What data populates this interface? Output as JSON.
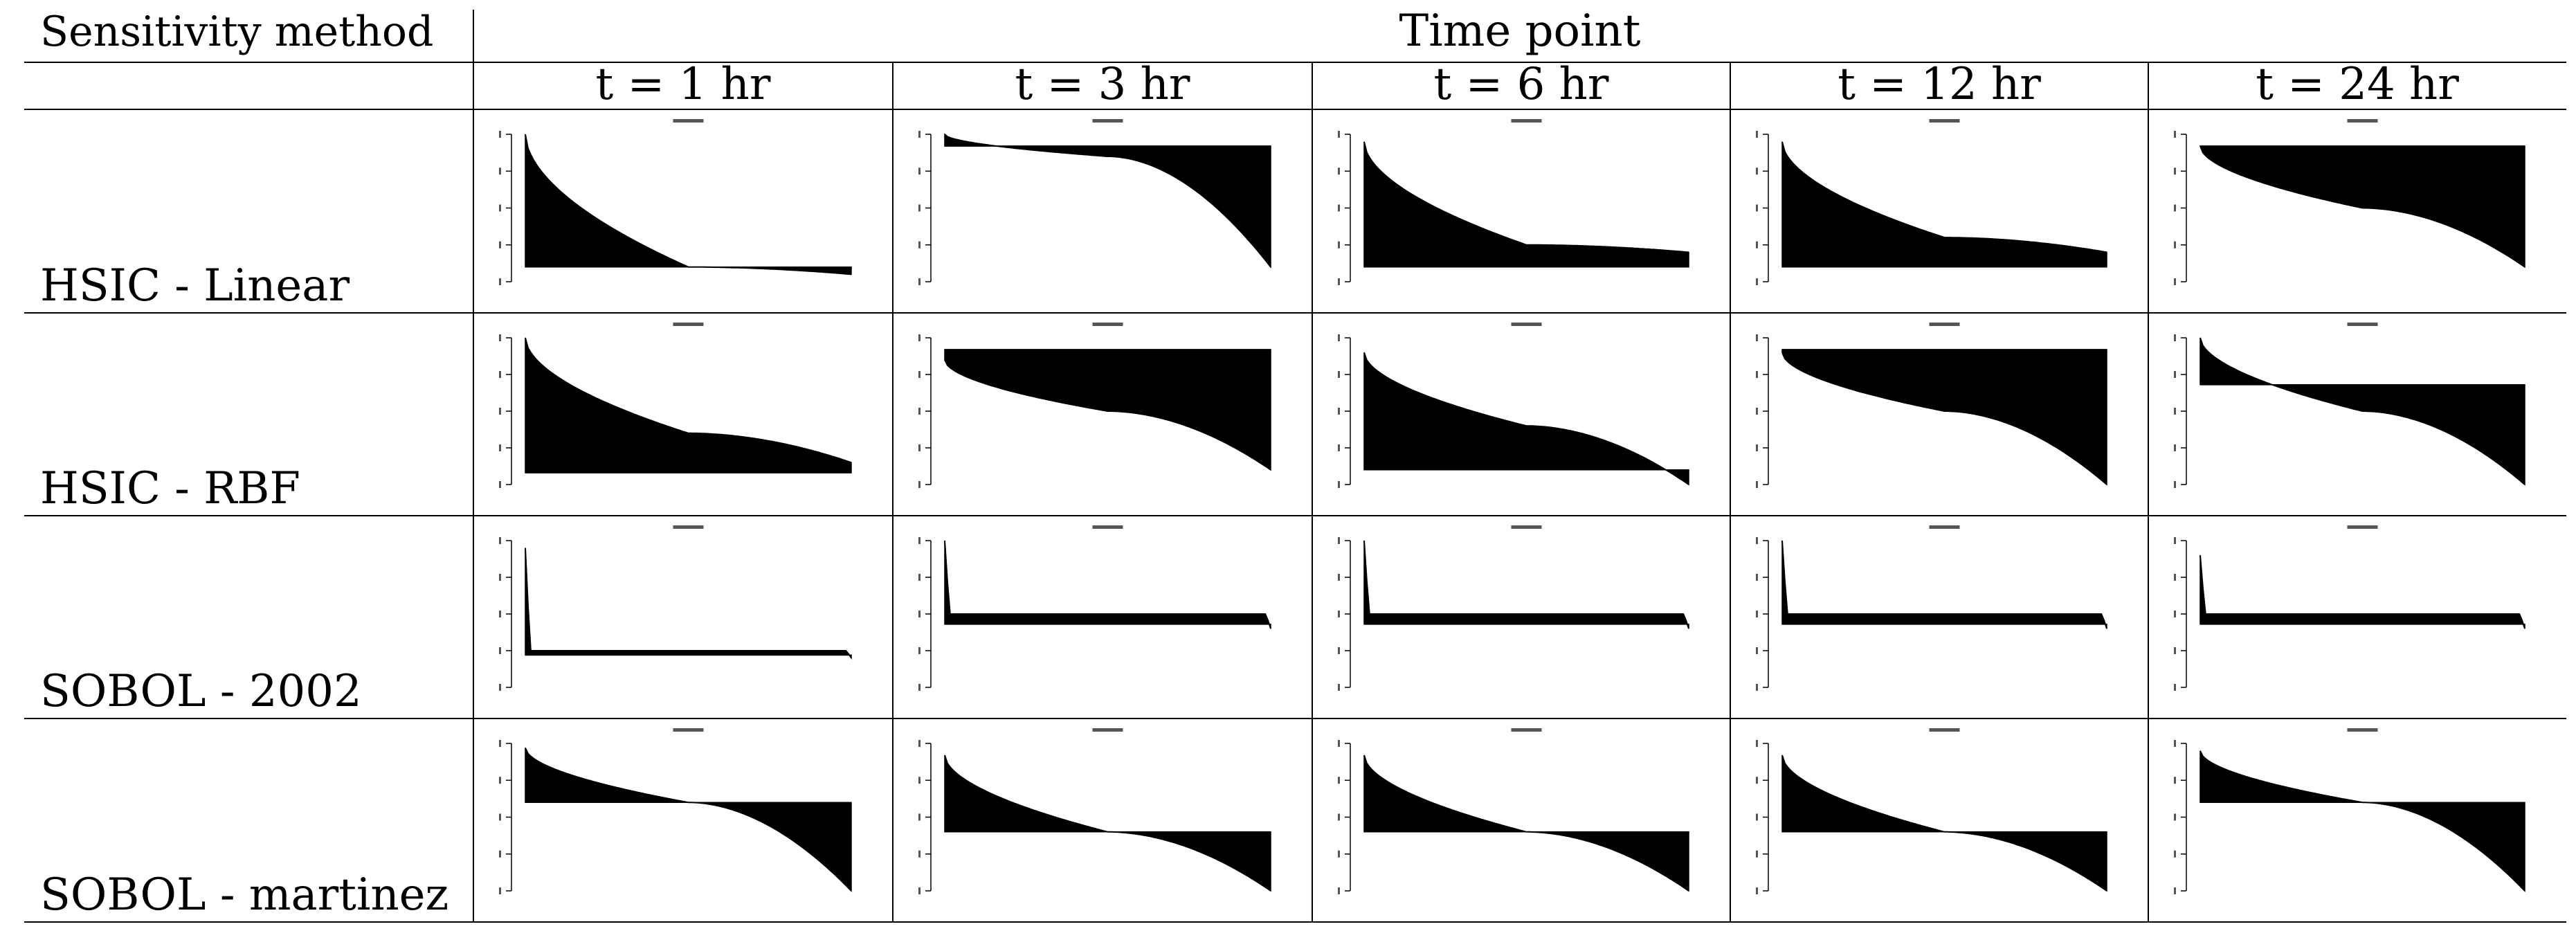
{
  "header": {
    "method_label": "Sensitivity method",
    "group_label": "Time point",
    "time_points": [
      "t = 1 hr",
      "t = 3 hr",
      "t = 6 hr",
      "t = 12 hr",
      "t = 24 hr"
    ]
  },
  "methods": [
    "HSIC - Linear",
    "HSIC - RBF",
    "SOBOL - 2002",
    "SOBOL - martinez"
  ],
  "chart_data": [
    {
      "type": "area",
      "method": "HSIC - Linear",
      "time": "t = 1 hr",
      "shape": "decline",
      "v": [
        1.0,
        0.1,
        0.05
      ],
      "baseline": 0.1
    },
    {
      "type": "area",
      "method": "HSIC - Linear",
      "time": "t = 3 hr",
      "shape": "decline",
      "v": [
        1.0,
        0.85,
        0.1
      ],
      "baseline": 0.92
    },
    {
      "type": "area",
      "method": "HSIC - Linear",
      "time": "t = 6 hr",
      "shape": "decline",
      "v": [
        0.95,
        0.25,
        0.2
      ],
      "baseline": 0.1
    },
    {
      "type": "area",
      "method": "HSIC - Linear",
      "time": "t = 12 hr",
      "shape": "decline",
      "v": [
        0.95,
        0.3,
        0.2
      ],
      "baseline": 0.1
    },
    {
      "type": "area",
      "method": "HSIC - Linear",
      "time": "t = 24 hr",
      "shape": "decline",
      "v": [
        0.92,
        0.5,
        0.1
      ],
      "baseline": 0.92
    },
    {
      "type": "area",
      "method": "HSIC - RBF",
      "time": "t = 1 hr",
      "shape": "decline",
      "v": [
        1.0,
        0.35,
        0.15
      ],
      "baseline": 0.08
    },
    {
      "type": "area",
      "method": "HSIC - RBF",
      "time": "t = 3 hr",
      "shape": "decline",
      "v": [
        0.85,
        0.5,
        0.1
      ],
      "baseline": 0.92
    },
    {
      "type": "area",
      "method": "HSIC - RBF",
      "time": "t = 6 hr",
      "shape": "decline",
      "v": [
        0.9,
        0.4,
        0.0
      ],
      "baseline": 0.1
    },
    {
      "type": "area",
      "method": "HSIC - RBF",
      "time": "t = 12 hr",
      "shape": "decline",
      "v": [
        0.9,
        0.5,
        0.0
      ],
      "baseline": 0.92
    },
    {
      "type": "area",
      "method": "HSIC - RBF",
      "time": "t = 24 hr",
      "shape": "decline",
      "v": [
        1.0,
        0.5,
        0.0
      ],
      "baseline": 0.68
    },
    {
      "type": "area",
      "method": "SOBOL - 2002",
      "time": "t = 1 hr",
      "shape": "spike",
      "v": [
        0.95,
        0.25,
        0.2
      ],
      "baseline": 0.22
    },
    {
      "type": "area",
      "method": "SOBOL - 2002",
      "time": "t = 3 hr",
      "shape": "spike",
      "v": [
        1.0,
        0.5,
        0.4
      ],
      "baseline": 0.43
    },
    {
      "type": "area",
      "method": "SOBOL - 2002",
      "time": "t = 6 hr",
      "shape": "spike",
      "v": [
        1.0,
        0.5,
        0.4
      ],
      "baseline": 0.43
    },
    {
      "type": "area",
      "method": "SOBOL - 2002",
      "time": "t = 12 hr",
      "shape": "spike",
      "v": [
        1.0,
        0.5,
        0.4
      ],
      "baseline": 0.43
    },
    {
      "type": "area",
      "method": "SOBOL - 2002",
      "time": "t = 24 hr",
      "shape": "spike",
      "v": [
        0.9,
        0.5,
        0.4
      ],
      "baseline": 0.43
    },
    {
      "type": "area",
      "method": "SOBOL - martinez",
      "time": "t = 1 hr",
      "shape": "decline",
      "v": [
        0.97,
        0.6,
        0.0
      ],
      "baseline": 0.6
    },
    {
      "type": "area",
      "method": "SOBOL - martinez",
      "time": "t = 3 hr",
      "shape": "decline",
      "v": [
        0.92,
        0.4,
        0.0
      ],
      "baseline": 0.4
    },
    {
      "type": "area",
      "method": "SOBOL - martinez",
      "time": "t = 6 hr",
      "shape": "decline",
      "v": [
        0.92,
        0.4,
        0.0
      ],
      "baseline": 0.4
    },
    {
      "type": "area",
      "method": "SOBOL - martinez",
      "time": "t = 12 hr",
      "shape": "decline",
      "v": [
        0.92,
        0.4,
        0.0
      ],
      "baseline": 0.4
    },
    {
      "type": "area",
      "method": "SOBOL - martinez",
      "time": "t = 24 hr",
      "shape": "decline",
      "v": [
        0.95,
        0.6,
        0.0
      ],
      "baseline": 0.6
    }
  ]
}
